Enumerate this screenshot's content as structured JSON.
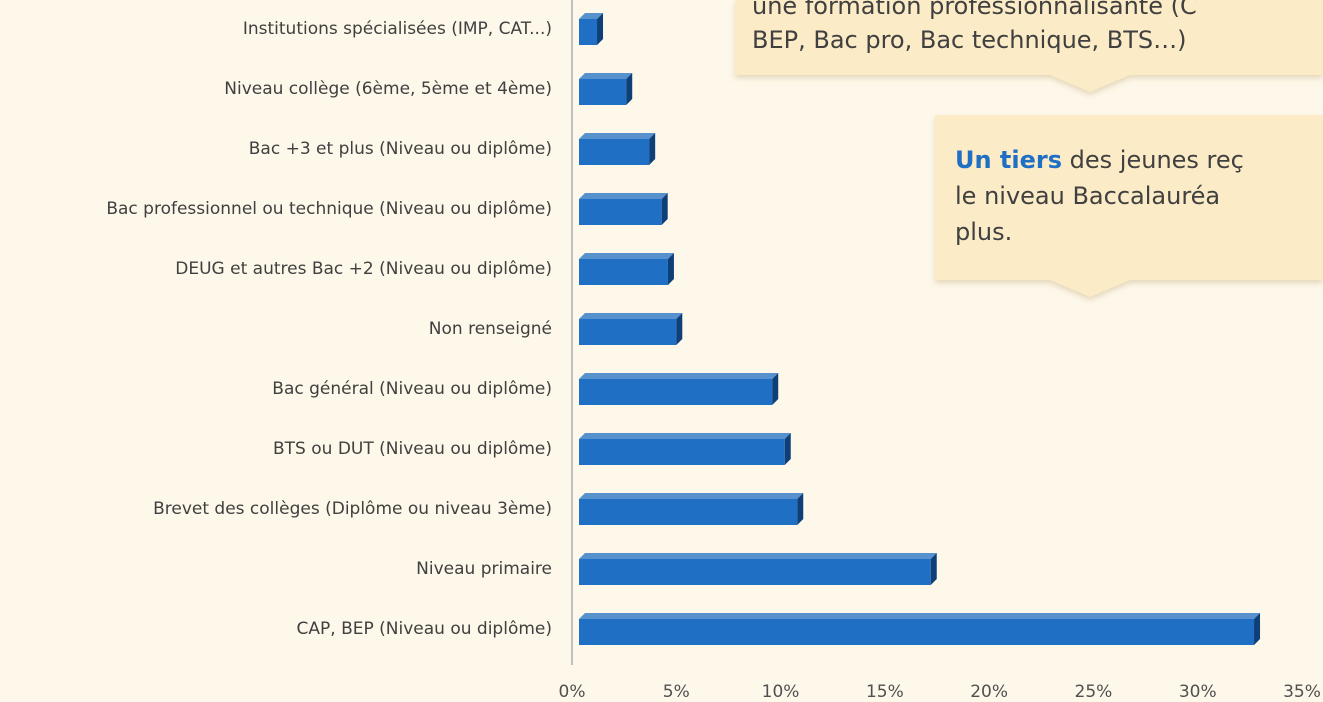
{
  "chart_data": {
    "type": "bar",
    "orientation": "horizontal",
    "categories": [
      "Institutions spécialisées (IMP, CAT...)",
      "Niveau collège (6ème, 5ème et 4ème)",
      "Bac +3 et plus (Niveau ou diplôme)",
      "Bac professionnel ou technique (Niveau ou diplôme)",
      "DEUG et autres Bac +2 (Niveau ou diplôme)",
      "Non renseigné",
      "Bac général (Niveau ou diplôme)",
      "BTS ou DUT (Niveau ou diplôme)",
      "Brevet des collèges (Diplôme ou niveau 3ème)",
      "Niveau primaire",
      "CAP, BEP (Niveau ou diplôme)"
    ],
    "values": [
      1.2,
      2.6,
      3.7,
      4.3,
      4.6,
      5.0,
      9.6,
      10.2,
      10.8,
      17.2,
      32.7
    ],
    "color": "#1f6fc4",
    "xlim": [
      0,
      35
    ],
    "xticks": [
      {
        "value": 0,
        "label": "0%"
      },
      {
        "value": 5,
        "label": "5%"
      },
      {
        "value": 10,
        "label": "10%"
      },
      {
        "value": 15,
        "label": "15%"
      },
      {
        "value": 20,
        "label": "20%"
      },
      {
        "value": 25,
        "label": "25%"
      },
      {
        "value": 30,
        "label": "30%"
      },
      {
        "value": 35,
        "label": "35%"
      }
    ],
    "annotations": [
      {
        "lines": [
          "une formation professionnalisante (C",
          "BEP, Bac pro, Bac technique, BTS…)"
        ]
      },
      {
        "highlight": "Un tiers",
        "lines": [
          " des jeunes reç",
          "le niveau Baccalauréa",
          "plus."
        ]
      }
    ]
  }
}
